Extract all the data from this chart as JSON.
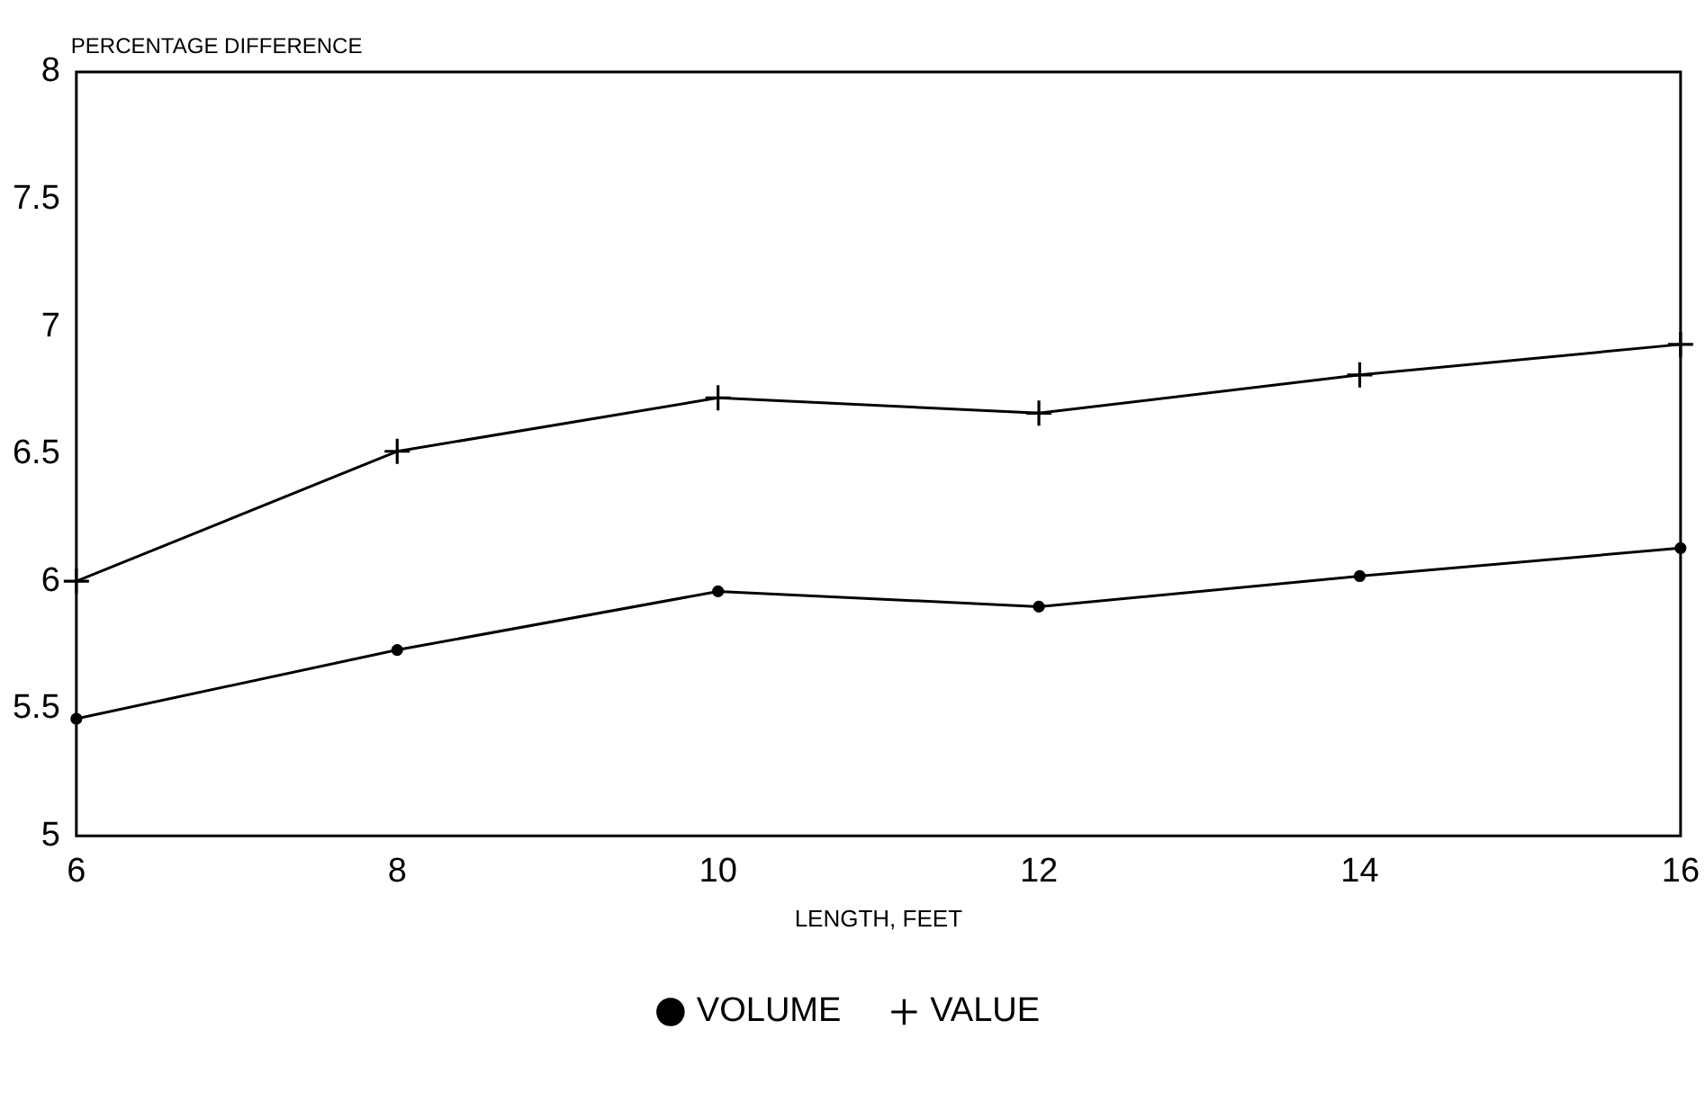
{
  "chart_data": {
    "type": "line",
    "ylabel": "PERCENTAGE DIFFERENCE",
    "xlabel": "LENGTH, FEET",
    "x": [
      6,
      8,
      10,
      12,
      14,
      16
    ],
    "series": [
      {
        "name": "VOLUME",
        "color": "#000000",
        "marker": "circle",
        "values": [
          5.46,
          5.73,
          5.96,
          5.9,
          6.02,
          6.13
        ]
      },
      {
        "name": "VALUE",
        "color": "#000000",
        "marker": "cross",
        "values": [
          6.0,
          6.51,
          6.72,
          6.66,
          6.81,
          6.93
        ]
      }
    ],
    "xlim": [
      6,
      16
    ],
    "xticks": [
      6,
      8,
      10,
      12,
      14,
      16
    ],
    "ylim": [
      5,
      8
    ],
    "yticks": [
      5,
      5.5,
      6,
      6.5,
      7,
      7.5,
      8
    ],
    "grid": false,
    "legend": "bottom",
    "line_style": "solid"
  }
}
